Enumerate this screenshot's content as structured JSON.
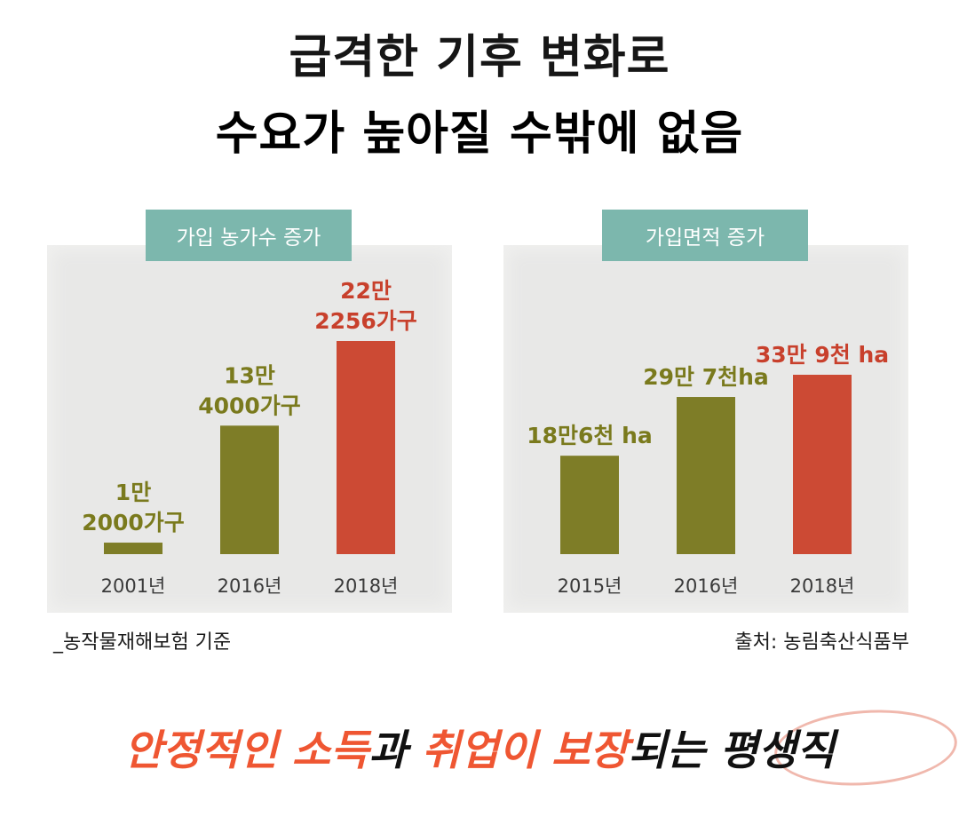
{
  "headline": {
    "line1": "급격한 기후 변화로",
    "line2": "수요가 높아질 수밖에 없음"
  },
  "colors": {
    "accent": "#ef5632",
    "olive_bar": "#7e7d27",
    "red_bar": "#cc4a34",
    "olive_label": "#7a7a1d",
    "red_label": "#c8402c",
    "tab": "#7cb7ad",
    "panel": "#e8e8e7"
  },
  "chart_data": [
    {
      "type": "bar",
      "title": "가입 농가수 증가",
      "categories": [
        "2001년",
        "2016년",
        "2018년"
      ],
      "values": [
        12000,
        134000,
        222256
      ],
      "value_labels": [
        [
          "1만",
          "2000가구"
        ],
        [
          "13만",
          "4000가구"
        ],
        [
          "22만",
          "2256가구"
        ]
      ],
      "highlight_index": 2,
      "note": "_농작물재해보험 기준"
    },
    {
      "type": "bar",
      "title": "가입면적 증가",
      "categories": [
        "2015년",
        "2016년",
        "2018년"
      ],
      "values": [
        186000,
        297000,
        339000
      ],
      "value_labels": [
        [
          "18만6천 ha"
        ],
        [
          "29만 7천ha"
        ],
        [
          "33만 9천 ha"
        ]
      ],
      "highlight_index": 2,
      "note": "출처: 농림축산식품부"
    }
  ],
  "bottom": {
    "parts": [
      {
        "text": "안정적인 소득",
        "color": "#ef5632"
      },
      {
        "text": "과 ",
        "color": "#111111"
      },
      {
        "text": "취업이 보장",
        "color": "#ef5632"
      },
      {
        "text": "되는 ",
        "color": "#111111"
      },
      {
        "text": "평생직",
        "color": "#111111"
      }
    ]
  }
}
